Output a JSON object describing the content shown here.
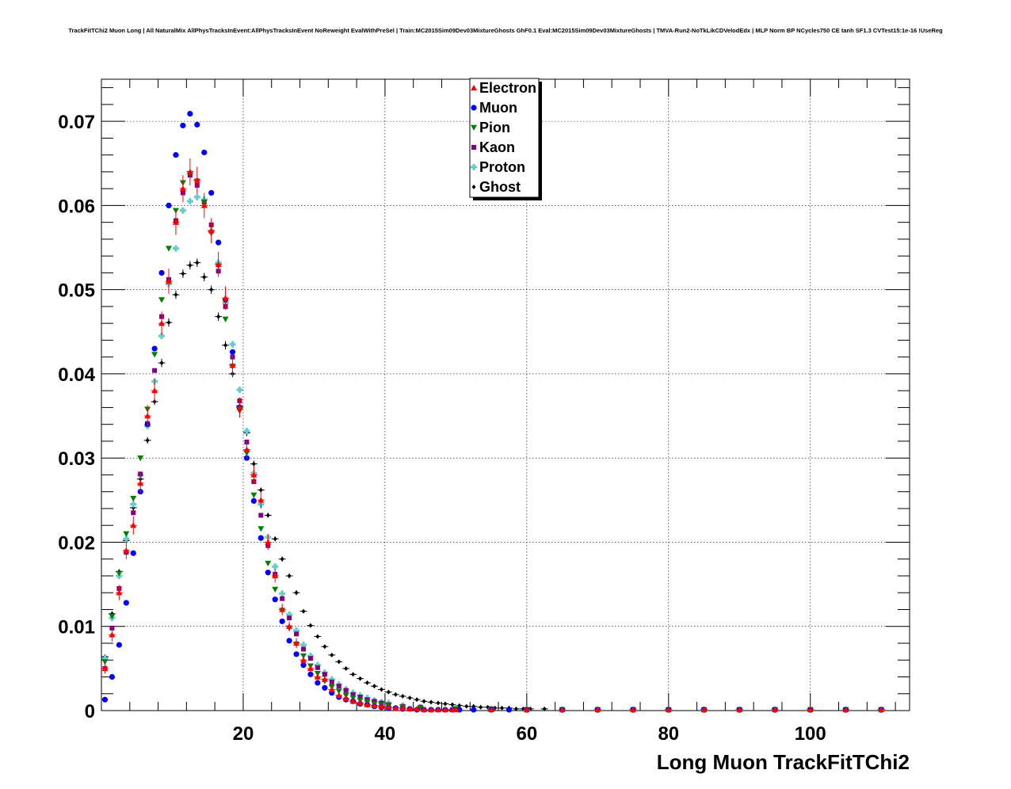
{
  "chart_data": {
    "type": "scatter",
    "title": "TrackFitTChi2 Muon Long | All NaturalMix AllPhysTracksInEvent:AllPhysTracksInEvent NoReweight EvalWithPreSel | Train:MC2015Sim09Dev03MixtureGhosts GhF0.1 Eval:MC2015Sim09Dev03MixtureGhosts | TMVA-Run2-NoTkLikCDVelodEdx | MLP Norm BP NCycles750 CE tanh SF1.3 CVTest15:1e-16 !UseReg",
    "xlabel": "Long Muon TrackFitTChi2",
    "ylabel": "",
    "xlim": [
      0,
      114
    ],
    "ylim": [
      0,
      0.075
    ],
    "x_ticks": [
      20,
      40,
      60,
      80,
      100
    ],
    "x_tick_labels": [
      "20",
      "40",
      "60",
      "80",
      "100"
    ],
    "y_ticks": [
      0,
      0.01,
      0.02,
      0.03,
      0.04,
      0.05,
      0.06,
      0.07
    ],
    "y_tick_labels": [
      "0",
      "0.01",
      "0.02",
      "0.03",
      "0.04",
      "0.05",
      "0.06",
      "0.07"
    ],
    "grid": true,
    "legend_position": "top-center",
    "bin_width": 1,
    "series": [
      {
        "name": "Electron",
        "color": "#ff0000",
        "marker": "triangle-up",
        "error_bars": true,
        "x": [
          0.5,
          1.5,
          2.5,
          3.5,
          4.5,
          5.5,
          6.5,
          7.5,
          8.5,
          9.5,
          10.5,
          11.5,
          12.5,
          13.5,
          14.5,
          15.5,
          16.5,
          17.5,
          18.5,
          19.5,
          20.5,
          21.5,
          22.5,
          23.5,
          24.5,
          25.5,
          26.5,
          27.5,
          28.5,
          29.5,
          30.5,
          31.5,
          32.5,
          33.5,
          34.5,
          35.5,
          36.5,
          37.5,
          38.5,
          39.5,
          40.5,
          41.5,
          42.5,
          43.5,
          44.5,
          45.5,
          46.5,
          47.5,
          48.5,
          49.5,
          50,
          55,
          60,
          65,
          70,
          75,
          80,
          85,
          90,
          95,
          100,
          105,
          110
        ],
        "y": [
          0.005,
          0.009,
          0.014,
          0.019,
          0.022,
          0.027,
          0.035,
          0.038,
          0.046,
          0.051,
          0.058,
          0.062,
          0.064,
          0.063,
          0.06,
          0.057,
          0.053,
          0.049,
          0.041,
          0.036,
          0.031,
          0.028,
          0.025,
          0.02,
          0.016,
          0.012,
          0.01,
          0.008,
          0.006,
          0.005,
          0.004,
          0.0037,
          0.0025,
          0.0018,
          0.0014,
          0.0011,
          0.0009,
          0.0007,
          0.0006,
          0.0005,
          0.0004,
          0.0003,
          0.0003,
          0.0002,
          0.0002,
          0.0001,
          0.0001,
          0.0001,
          0.0001,
          0.0001,
          0.0001,
          0.0001,
          0.0001,
          0.0001,
          0.0001,
          0.0001,
          0.0001,
          0.0001,
          0.0001,
          0.0001,
          0.0001,
          0.0001,
          0.0001
        ],
        "err": [
          0.0006,
          0.0008,
          0.0009,
          0.001,
          0.0011,
          0.0012,
          0.0013,
          0.0014,
          0.0014,
          0.0015,
          0.0015,
          0.0016,
          0.0016,
          0.0016,
          0.0015,
          0.0015,
          0.0015,
          0.0014,
          0.0013,
          0.0012,
          0.0011,
          0.0011,
          0.001,
          0.0009,
          0.0008,
          0.0007,
          0.0006,
          0.0006,
          0.0005,
          0.0005,
          0.0004,
          0.0004,
          0.0003,
          0.0003,
          0.0003,
          0.0002,
          0.0002,
          0.0002,
          0.0002,
          0.0002,
          0.0001,
          0.0001,
          0.0001,
          0.0001,
          0.0001,
          0.0001,
          0.0001,
          0.0001,
          0.0001,
          0.0001,
          0.0001,
          0.0001,
          0.0001,
          0.0001,
          0.0001,
          0.0001,
          0.0001,
          0.0001,
          0.0001,
          0.0001,
          0.0001,
          0.0001,
          0.0001
        ]
      },
      {
        "name": "Muon",
        "color": "#0000ff",
        "marker": "circle",
        "error_bars": false,
        "x": [
          0.5,
          1.5,
          2.5,
          3.5,
          4.5,
          5.5,
          6.5,
          7.5,
          8.5,
          9.5,
          10.5,
          11.5,
          12.5,
          13.5,
          14.5,
          15.5,
          16.5,
          17.5,
          18.5,
          19.5,
          20.5,
          21.5,
          22.5,
          23.5,
          24.5,
          25.5,
          26.5,
          27.5,
          28.5,
          29.5,
          30.5,
          31.5,
          32.5,
          33.5,
          34.5,
          35.5,
          36.5,
          37.5,
          38.5,
          39.5,
          40.5,
          41.5,
          42.5,
          43.5,
          44.5,
          45.5,
          46.5,
          47.5,
          48.5,
          49.5,
          50.5,
          52.5,
          55,
          57.5,
          60,
          65,
          70,
          75,
          80,
          85,
          90,
          95,
          100,
          105,
          110
        ],
        "y": [
          0.0013,
          0.004,
          0.0078,
          0.0128,
          0.0187,
          0.026,
          0.034,
          0.043,
          0.052,
          0.06,
          0.066,
          0.0695,
          0.0709,
          0.0696,
          0.0663,
          0.0615,
          0.0556,
          0.0488,
          0.0426,
          0.036,
          0.03,
          0.0249,
          0.0205,
          0.0164,
          0.0132,
          0.0106,
          0.0083,
          0.0067,
          0.0054,
          0.0043,
          0.0033,
          0.0027,
          0.0021,
          0.0016,
          0.0013,
          0.0011,
          0.0008,
          0.0007,
          0.0005,
          0.0004,
          0.0003,
          0.0003,
          0.0002,
          0.0002,
          0.0001,
          0.0001,
          0.0001,
          0.0001,
          0.0001,
          0.0001,
          0.0001,
          0.0001,
          0.0001,
          0.0001,
          0.0001,
          0.0001,
          0.0001,
          0.0001,
          0.0001,
          0.0001,
          0.0001,
          0.0001,
          0.0001,
          0.0001,
          0.0001
        ]
      },
      {
        "name": "Pion",
        "color": "#008000",
        "marker": "triangle-down",
        "error_bars": false,
        "x": [
          0.5,
          1.5,
          2.5,
          3.5,
          4.5,
          5.5,
          6.5,
          7.5,
          8.5,
          9.5,
          10.5,
          11.5,
          12.5,
          13.5,
          14.5,
          15.5,
          16.5,
          17.5,
          18.5,
          19.5,
          20.5,
          21.5,
          22.5,
          23.5,
          24.5,
          25.5,
          26.5,
          27.5,
          28.5,
          29.5,
          30.5,
          31.5,
          32.5,
          33.5,
          34.5,
          35.5,
          36.5,
          37.5,
          38.5,
          39.5,
          40.5,
          42.5,
          45,
          50,
          55,
          60,
          65,
          70,
          75,
          80,
          85,
          90,
          95,
          100,
          105,
          110
        ],
        "y": [
          0.0058,
          0.0112,
          0.0163,
          0.021,
          0.0252,
          0.03,
          0.0358,
          0.0423,
          0.0488,
          0.0549,
          0.0594,
          0.0627,
          0.0638,
          0.0629,
          0.0604,
          0.0567,
          0.0528,
          0.0465,
          0.0409,
          0.0356,
          0.0306,
          0.0256,
          0.0216,
          0.0175,
          0.0144,
          0.0119,
          0.0098,
          0.0079,
          0.0065,
          0.0053,
          0.0044,
          0.0035,
          0.0028,
          0.0023,
          0.0018,
          0.0015,
          0.0012,
          0.001,
          0.0008,
          0.0007,
          0.0006,
          0.0004,
          0.0003,
          0.0002,
          0.0001,
          0.0001,
          0.0001,
          0.0001,
          0.0001,
          0.0001,
          0.0001,
          0.0001,
          0.0001,
          0.0001,
          0.0001,
          0.0001
        ]
      },
      {
        "name": "Kaon",
        "color": "#800080",
        "marker": "square",
        "error_bars": false,
        "x": [
          0.5,
          1.5,
          2.5,
          3.5,
          4.5,
          5.5,
          6.5,
          7.5,
          8.5,
          9.5,
          10.5,
          11.5,
          12.5,
          13.5,
          14.5,
          15.5,
          16.5,
          17.5,
          18.5,
          19.5,
          20.5,
          21.5,
          22.5,
          23.5,
          24.5,
          25.5,
          26.5,
          27.5,
          28.5,
          29.5,
          30.5,
          31.5,
          32.5,
          33.5,
          34.5,
          35.5,
          36.5,
          37.5,
          38.5,
          39.5,
          40.5,
          42.5,
          45,
          50,
          55,
          60,
          65,
          70,
          75,
          80,
          85,
          90,
          95,
          100,
          105,
          110
        ],
        "y": [
          0.005,
          0.0098,
          0.0145,
          0.0188,
          0.0235,
          0.0281,
          0.0341,
          0.0404,
          0.0468,
          0.0512,
          0.0582,
          0.0615,
          0.0636,
          0.0624,
          0.0604,
          0.0577,
          0.0522,
          0.048,
          0.042,
          0.0368,
          0.0319,
          0.0272,
          0.0232,
          0.0196,
          0.0162,
          0.0133,
          0.011,
          0.0091,
          0.0073,
          0.0062,
          0.0051,
          0.0043,
          0.0034,
          0.0029,
          0.0024,
          0.0019,
          0.0016,
          0.0013,
          0.0011,
          0.0009,
          0.0007,
          0.0005,
          0.0004,
          0.0002,
          0.0002,
          0.0001,
          0.0001,
          0.0001,
          0.0001,
          0.0001,
          0.0001,
          0.0001,
          0.0001,
          0.0001,
          0.0001,
          0.0001
        ]
      },
      {
        "name": "Proton",
        "color": "#66cccc",
        "marker": "cross",
        "error_bars": false,
        "x": [
          0.5,
          1.5,
          2.5,
          3.5,
          4.5,
          5.5,
          6.5,
          7.5,
          8.5,
          9.5,
          10.5,
          11.5,
          12.5,
          13.5,
          14.5,
          15.5,
          16.5,
          17.5,
          18.5,
          19.5,
          20.5,
          21.5,
          22.5,
          23.5,
          24.5,
          25.5,
          26.5,
          27.5,
          28.5,
          29.5,
          30.5,
          31.5,
          32.5,
          33.5,
          34.5,
          35.5,
          36.5,
          37.5,
          38.5,
          39.5,
          40.5,
          42.5,
          45,
          50,
          55,
          60,
          65,
          70,
          75,
          80,
          85,
          90,
          95,
          100,
          105,
          110
        ],
        "y": [
          0.0062,
          0.011,
          0.016,
          0.0204,
          0.0245,
          0.028,
          0.0338,
          0.0391,
          0.0445,
          0.0507,
          0.0549,
          0.0594,
          0.0605,
          0.061,
          0.0607,
          0.057,
          0.0532,
          0.0484,
          0.0435,
          0.0381,
          0.0332,
          0.0282,
          0.0245,
          0.0206,
          0.0171,
          0.0139,
          0.0114,
          0.0095,
          0.0078,
          0.0065,
          0.0054,
          0.0045,
          0.0037,
          0.0031,
          0.0025,
          0.0021,
          0.0018,
          0.0015,
          0.0012,
          0.001,
          0.0009,
          0.0006,
          0.0004,
          0.0003,
          0.0002,
          0.0001,
          0.0001,
          0.0001,
          0.0001,
          0.0001,
          0.0001,
          0.0001,
          0.0001,
          0.0001,
          0.0001,
          0.0001
        ]
      },
      {
        "name": "Ghost",
        "color": "#000000",
        "marker": "diamond",
        "error_bars": true,
        "x": [
          0.5,
          1.5,
          2.5,
          3.5,
          4.5,
          5.5,
          6.5,
          7.5,
          8.5,
          9.5,
          10.5,
          11.5,
          12.5,
          13.5,
          14.5,
          15.5,
          16.5,
          17.5,
          18.5,
          19.5,
          20.5,
          21.5,
          22.5,
          23.5,
          24.5,
          25.5,
          26.5,
          27.5,
          28.5,
          29.5,
          30.5,
          31.5,
          32.5,
          33.5,
          34.5,
          35.5,
          36.5,
          37.5,
          38.5,
          39.5,
          40.5,
          41.5,
          42.5,
          43.5,
          44.5,
          45.5,
          46.5,
          47.5,
          48.5,
          49.5,
          50.5,
          51.5,
          52.5,
          53.5,
          54.5,
          55.5,
          56.5,
          57.5,
          58.5,
          59.5,
          60.5,
          62.5,
          65,
          70,
          75,
          80,
          85,
          90,
          95,
          100,
          105,
          110
        ],
        "y": [
          0.0064,
          0.0115,
          0.0165,
          0.0202,
          0.0241,
          0.0275,
          0.0321,
          0.0367,
          0.0413,
          0.0461,
          0.0494,
          0.0519,
          0.0529,
          0.0532,
          0.0515,
          0.05,
          0.0468,
          0.0434,
          0.04,
          0.0362,
          0.033,
          0.0293,
          0.0262,
          0.0232,
          0.0204,
          0.018,
          0.016,
          0.014,
          0.0118,
          0.0101,
          0.0088,
          0.0076,
          0.0066,
          0.0058,
          0.005,
          0.0043,
          0.0038,
          0.0033,
          0.0029,
          0.0025,
          0.0022,
          0.0019,
          0.0017,
          0.0015,
          0.0013,
          0.0011,
          0.001,
          0.0009,
          0.0008,
          0.0007,
          0.0006,
          0.0005,
          0.0005,
          0.0004,
          0.0004,
          0.0003,
          0.0003,
          0.0003,
          0.0002,
          0.0002,
          0.0002,
          0.0002,
          0.0001,
          0.0001,
          0.0001,
          0.0001,
          0.0001,
          0.0001,
          0.0001,
          0.0001,
          0.0001,
          0.0001
        ],
        "err": [
          0.0002,
          0.0003,
          0.0003,
          0.0003,
          0.0004,
          0.0004,
          0.0004,
          0.0004,
          0.0005,
          0.0005,
          0.0005,
          0.0005,
          0.0005,
          0.0005,
          0.0005,
          0.0005,
          0.0005,
          0.0005,
          0.0004,
          0.0004,
          0.0004,
          0.0004,
          0.0003,
          0.0003,
          0.0003,
          0.0003,
          0.0003,
          0.0003,
          0.0002,
          0.0002,
          0.0002,
          0.0002,
          0.0002,
          0.0002,
          0.0002,
          0.0001,
          0.0001,
          0.0001,
          0.0001,
          0.0001,
          0.0001,
          0.0001,
          0.0001,
          0.0001,
          0.0001,
          0.0001,
          0.0001,
          0.0001,
          0.0001,
          0.0001,
          0.0001,
          0.0001,
          0.0001,
          0.0001,
          0.0001,
          0.0001,
          0.0001,
          0.0001,
          0.0001,
          0.0001,
          0.0001,
          0.0001,
          0.0001,
          0.0001,
          0.0001,
          0.0001,
          0.0001,
          0.0001,
          0.0001,
          0.0001,
          0.0001,
          0.0001
        ]
      }
    ]
  }
}
